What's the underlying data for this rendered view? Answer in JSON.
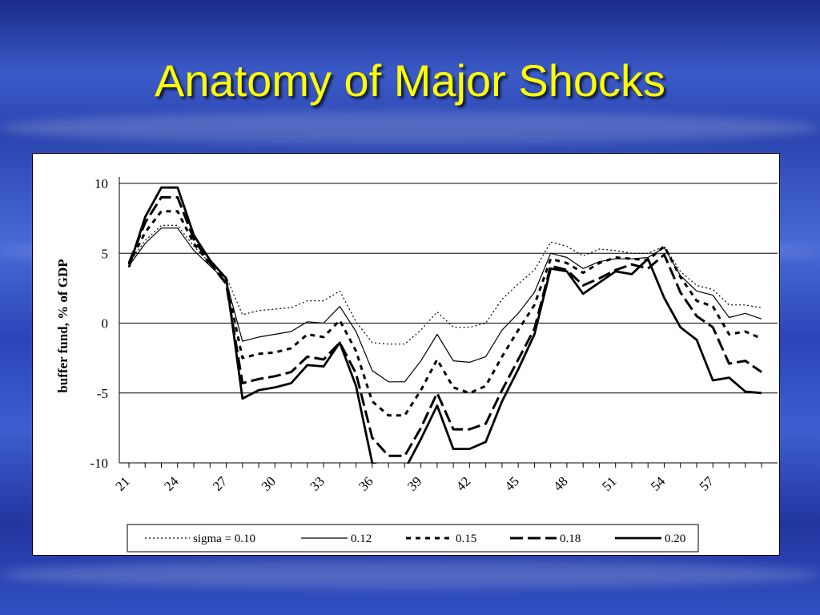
{
  "slide": {
    "title": "Anatomy of Major Shocks"
  },
  "colors": {
    "title": "#ffff00",
    "background": "#2b44b0",
    "chart_bg": "#ffffff",
    "ink": "#000000"
  },
  "chart_data": {
    "type": "line",
    "title": "",
    "xlabel": "",
    "ylabel": "buffer fund, % of GDP",
    "ylim": [
      -10,
      10
    ],
    "yticks": [
      10,
      5,
      0,
      -5,
      -10
    ],
    "xlim": [
      21,
      59
    ],
    "xtick_labels": [
      21,
      24,
      27,
      30,
      33,
      36,
      39,
      42,
      45,
      48,
      51,
      54,
      57
    ],
    "grid": "horizontal",
    "legend": "bottom",
    "x": [
      21,
      22,
      23,
      24,
      25,
      26,
      27,
      28,
      29,
      30,
      31,
      32,
      33,
      34,
      35,
      36,
      37,
      38,
      39,
      40,
      41,
      42,
      43,
      44,
      45,
      46,
      47,
      48,
      49,
      50,
      51,
      52,
      53,
      54,
      55,
      56,
      57,
      58,
      59,
      60
    ],
    "series": [
      {
        "name": "sigma = 0.10",
        "style": "dotted",
        "values": [
          4.3,
          5.9,
          7.0,
          7.0,
          5.5,
          4.3,
          3.3,
          0.6,
          0.9,
          1.0,
          1.1,
          1.6,
          1.6,
          2.3,
          0.1,
          -1.4,
          -1.5,
          -1.5,
          -0.5,
          0.8,
          -0.3,
          -0.3,
          0.0,
          1.7,
          2.8,
          3.8,
          5.8,
          5.5,
          4.8,
          5.3,
          5.2,
          5.0,
          5.0,
          5.5,
          3.7,
          2.7,
          2.4,
          1.3,
          1.3,
          1.1
        ]
      },
      {
        "name": "0.12",
        "style": "thin",
        "values": [
          4.1,
          5.7,
          6.8,
          6.8,
          5.2,
          4.1,
          3.0,
          -1.3,
          -1.0,
          -0.8,
          -0.6,
          0.1,
          0.0,
          1.2,
          -0.6,
          -3.4,
          -4.2,
          -4.2,
          -2.7,
          -0.8,
          -2.7,
          -2.8,
          -2.4,
          -0.5,
          0.7,
          2.2,
          5.0,
          4.7,
          3.9,
          4.4,
          4.6,
          4.6,
          4.7,
          5.4,
          3.4,
          2.3,
          2.0,
          0.4,
          0.7,
          0.3
        ]
      },
      {
        "name": "0.15",
        "style": "dashed-short",
        "values": [
          4.2,
          6.5,
          8.0,
          8.0,
          5.7,
          4.2,
          3.0,
          -2.5,
          -2.2,
          -2.1,
          -1.8,
          -0.8,
          -1.0,
          0.2,
          -2.0,
          -5.6,
          -6.6,
          -6.6,
          -4.8,
          -2.6,
          -4.6,
          -5.0,
          -4.5,
          -2.4,
          -0.5,
          1.3,
          4.6,
          4.3,
          3.6,
          4.3,
          4.7,
          4.6,
          4.5,
          5.5,
          3.3,
          1.6,
          1.2,
          -0.8,
          -0.6,
          -1.1
        ]
      },
      {
        "name": "0.18",
        "style": "dashed-long",
        "values": [
          4.3,
          7.2,
          9.0,
          9.0,
          6.0,
          4.3,
          2.8,
          -4.3,
          -4.0,
          -3.8,
          -3.5,
          -2.4,
          -2.6,
          -1.4,
          -3.6,
          -8.2,
          -9.5,
          -9.5,
          -7.5,
          -5.0,
          -7.6,
          -7.6,
          -7.2,
          -4.8,
          -2.6,
          -0.4,
          4.1,
          3.8,
          2.7,
          3.2,
          3.8,
          4.2,
          3.9,
          4.9,
          2.2,
          0.5,
          -0.3,
          -2.9,
          -2.7,
          -3.5
        ]
      },
      {
        "name": "0.20",
        "style": "thick",
        "values": [
          4.0,
          7.6,
          9.7,
          9.7,
          6.3,
          4.5,
          3.2,
          -5.4,
          -4.8,
          -4.6,
          -4.3,
          -3.0,
          -3.1,
          -1.4,
          -4.5,
          -10.0,
          -10.5,
          -10.5,
          -8.3,
          -5.9,
          -9.0,
          -9.0,
          -8.5,
          -5.6,
          -3.3,
          -0.8,
          3.9,
          3.7,
          2.1,
          2.9,
          3.7,
          3.5,
          4.6,
          1.8,
          -0.3,
          -1.2,
          -4.1,
          -3.9,
          -4.9,
          -5.0
        ]
      }
    ]
  }
}
